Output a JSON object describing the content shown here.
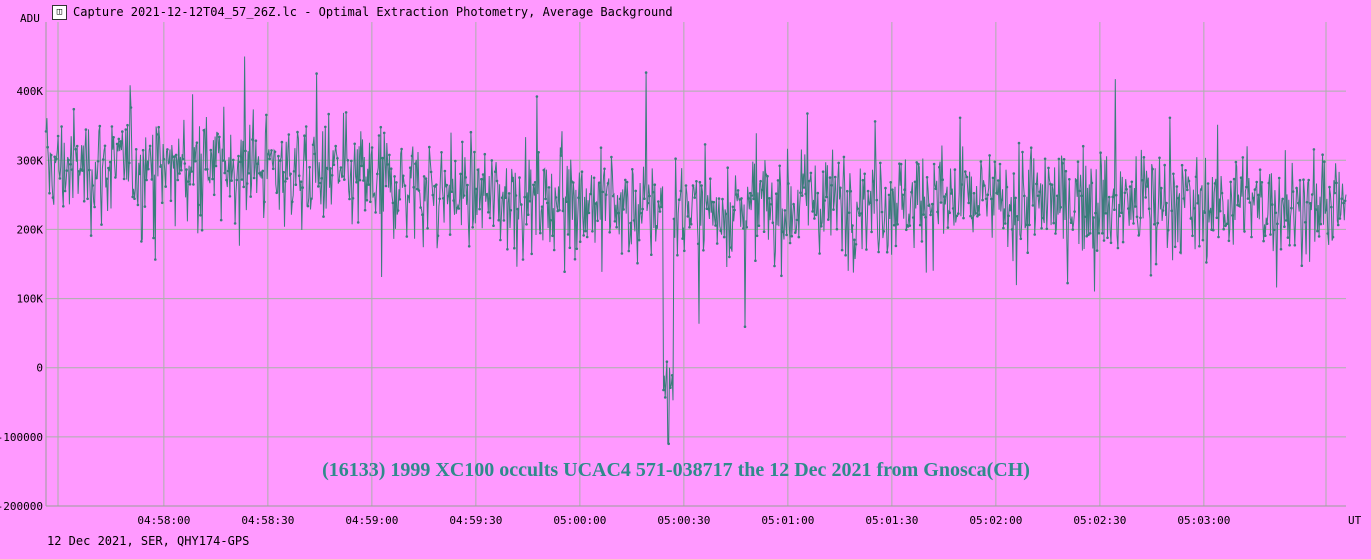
{
  "window": {
    "icon": "lightcurve-app-icon",
    "title": "Capture 2021-12-12T04_57_26Z.lc - Optimal Extraction Photometry, Average Background"
  },
  "footer": {
    "text": "12 Dec 2021, SER, QHY174-GPS"
  },
  "colors": {
    "background": "#ff99ff",
    "grid": "#aab2aa",
    "series": "#3a7d7a",
    "annotation": "#2e8b8b"
  },
  "chart_data": {
    "type": "line",
    "title": "(16133) 1999 XC100 occults UCAC4 571-038717 the 12 Dec 2021 from Gnosca(CH)",
    "ylabel": "ADU",
    "xlabel": "UT",
    "grid": true,
    "legend": "none",
    "ylim": [
      -200000,
      500000
    ],
    "xlim": [
      "04:57:26",
      "05:03:41"
    ],
    "y_ticks": [
      {
        "value": 400000,
        "label": "400K"
      },
      {
        "value": 300000,
        "label": "300K"
      },
      {
        "value": 200000,
        "label": "200K"
      },
      {
        "value": 100000,
        "label": "100K"
      },
      {
        "value": 0,
        "label": "0"
      },
      {
        "value": -100000,
        "label": "-100000"
      },
      {
        "value": -200000,
        "label": "-200000"
      }
    ],
    "x_ticks": [
      "04:58:00",
      "04:58:30",
      "04:59:00",
      "04:59:30",
      "05:00:00",
      "05:00:30",
      "05:01:00",
      "05:01:30",
      "05:02:00",
      "05:02:30",
      "05:03:00"
    ],
    "series": [
      {
        "baseline": [
          {
            "time": "04:57:26",
            "value": 290000
          },
          {
            "time": "04:58:30",
            "value": 290000
          },
          {
            "time": "04:59:00",
            "value": 270000
          },
          {
            "time": "04:59:30",
            "value": 250000
          },
          {
            "time": "05:00:00",
            "value": 240000
          },
          {
            "time": "05:00:20",
            "value": 230000
          },
          {
            "time": "05:01:00",
            "value": 235000
          },
          {
            "time": "05:01:30",
            "value": 245000
          },
          {
            "time": "05:02:00",
            "value": 240000
          },
          {
            "time": "05:03:00",
            "value": 240000
          },
          {
            "time": "05:03:41",
            "value": 230000
          }
        ],
        "scatter_peak_to_peak": 200000,
        "event": {
          "start": "05:00:24",
          "end": "05:00:27",
          "min_value": -110000,
          "mean_value": -20000
        }
      }
    ]
  }
}
